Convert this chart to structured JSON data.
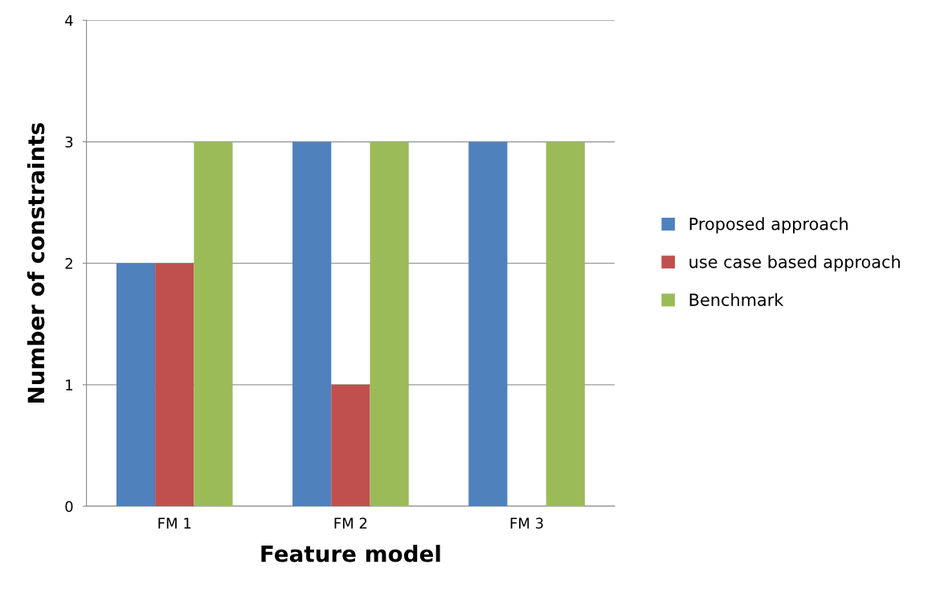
{
  "chart_data": {
    "type": "bar",
    "xlabel": "Feature model",
    "ylabel": "Number of constraints",
    "categories": [
      "FM 1",
      "FM 2",
      "FM 3"
    ],
    "series": [
      {
        "name": "Proposed approach",
        "color": "#4f81bd",
        "values": [
          2,
          3,
          3
        ]
      },
      {
        "name": "use case based approach",
        "color": "#c0504d",
        "values": [
          2,
          1,
          0
        ]
      },
      {
        "name": "Benchmark",
        "color": "#9bbb59",
        "values": [
          3,
          3,
          3
        ]
      }
    ],
    "ylim": [
      0,
      4
    ],
    "yticks": [
      0,
      1,
      2,
      3,
      4
    ],
    "grid": "y",
    "legend": "right"
  }
}
